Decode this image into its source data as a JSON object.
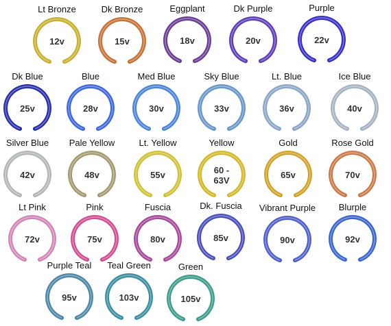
{
  "rings": [
    {
      "name": "Lt Bronze",
      "voltage": "12v",
      "color": "#c8b033"
    },
    {
      "name": "Dk Bronze",
      "voltage": "15v",
      "color": "#c4733a"
    },
    {
      "name": "Eggplant",
      "voltage": "18v",
      "color": "#6a3f93"
    },
    {
      "name": "Dk Purple",
      "voltage": "20v",
      "color": "#5f3fb5"
    },
    {
      "name": "Purple",
      "voltage": "22v",
      "color": "#3a31c4"
    },
    {
      "name": "Dk Blue",
      "voltage": "25v",
      "color": "#2a2fa8"
    },
    {
      "name": "Blue",
      "voltage": "28v",
      "color": "#3f67d8"
    },
    {
      "name": "Med Blue",
      "voltage": "30v",
      "color": "#4d85d6"
    },
    {
      "name": "Sky Blue",
      "voltage": "33v",
      "color": "#6a96c8"
    },
    {
      "name": "Lt. Blue",
      "voltage": "36v",
      "color": "#8ca6c6"
    },
    {
      "name": "Ice Blue",
      "voltage": "40v",
      "color": "#a6b4c2"
    },
    {
      "name": "Silver Blue",
      "voltage": "42v",
      "color": "#b5b6b6"
    },
    {
      "name": "Pale Yellow",
      "voltage": "48v",
      "color": "#a39a72"
    },
    {
      "name": "Lt. Yellow",
      "voltage": "55v",
      "color": "#cfc23a"
    },
    {
      "name": "Yellow",
      "voltage": "60 - 63V",
      "color": "#d2b92e"
    },
    {
      "name": "Gold",
      "voltage": "65v",
      "color": "#d1a22c"
    },
    {
      "name": "Rose Gold",
      "voltage": "70v",
      "color": "#c97a4a"
    },
    {
      "name": "Lt Pink",
      "voltage": "72v",
      "color": "#d187b6"
    },
    {
      "name": "Pink",
      "voltage": "75v",
      "color": "#cf4f93"
    },
    {
      "name": "Fuscia",
      "voltage": "80v",
      "color": "#a84a9a"
    },
    {
      "name": "Dk. Fuscia",
      "voltage": "85v",
      "color": "#4b4fb8"
    },
    {
      "name": "Vibrant Purple",
      "voltage": "90v",
      "color": "#5160c8"
    },
    {
      "name": "Blurple",
      "voltage": "92v",
      "color": "#3c67c9"
    },
    {
      "name": "Purple Teal",
      "voltage": "95v",
      "color": "#4d87a6"
    },
    {
      "name": "Teal Green",
      "voltage": "103v",
      "color": "#3c8ea0"
    },
    {
      "name": "Green",
      "voltage": "105v",
      "color": "#3f9b8a"
    }
  ]
}
